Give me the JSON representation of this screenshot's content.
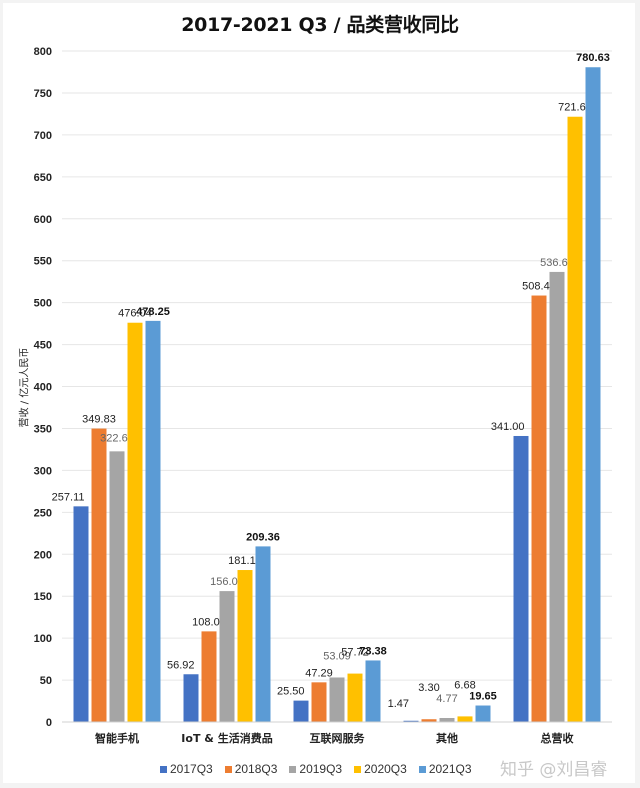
{
  "chart_data": {
    "type": "bar",
    "title": "2017-2021 Q3 / 品类营收同比",
    "xlabel": "",
    "ylabel": "营收 / 亿元人民币",
    "ylim": [
      0,
      800
    ],
    "yticks": [
      0,
      50,
      100,
      150,
      200,
      250,
      300,
      350,
      400,
      450,
      500,
      550,
      600,
      650,
      700,
      750,
      800
    ],
    "grid": true,
    "legend_position": "bottom",
    "categories": [
      "智能手机",
      "IoT & 生活消费品",
      "互联网服务",
      "其他",
      "总营收"
    ],
    "series": [
      {
        "name": "2017Q3",
        "color": "#4472C4",
        "values": [
          257.11,
          56.92,
          25.5,
          1.47,
          341.0
        ],
        "labels": [
          "257.11",
          "56.92",
          "25.50",
          "1.47",
          "341.00"
        ]
      },
      {
        "name": "2018Q3",
        "color": "#ED7D31",
        "values": [
          349.83,
          108.05,
          47.29,
          3.3,
          508.46
        ],
        "labels": [
          "349.83",
          "108.05",
          "47.29",
          "3.30",
          "508.46"
        ]
      },
      {
        "name": "2019Q3",
        "color": "#A5A5A5",
        "values": [
          322.68,
          156.06,
          53.09,
          4.77,
          536.61
        ],
        "labels": [
          "322.68",
          "156.06",
          "53.09",
          "4.77",
          "536.61"
        ]
      },
      {
        "name": "2020Q3",
        "color": "#FFC000",
        "values": [
          476.04,
          181.19,
          57.72,
          6.68,
          721.63
        ],
        "labels": [
          "476.04",
          "181.19",
          "57.72",
          "6.68",
          "721.63"
        ]
      },
      {
        "name": "2021Q3",
        "color": "#5B9BD5",
        "values": [
          478.25,
          209.36,
          73.38,
          19.65,
          780.63
        ],
        "labels": [
          "478.25",
          "209.36",
          "73.38",
          "19.65",
          "780.63"
        ]
      }
    ]
  },
  "watermark": "知乎 @刘昌睿"
}
